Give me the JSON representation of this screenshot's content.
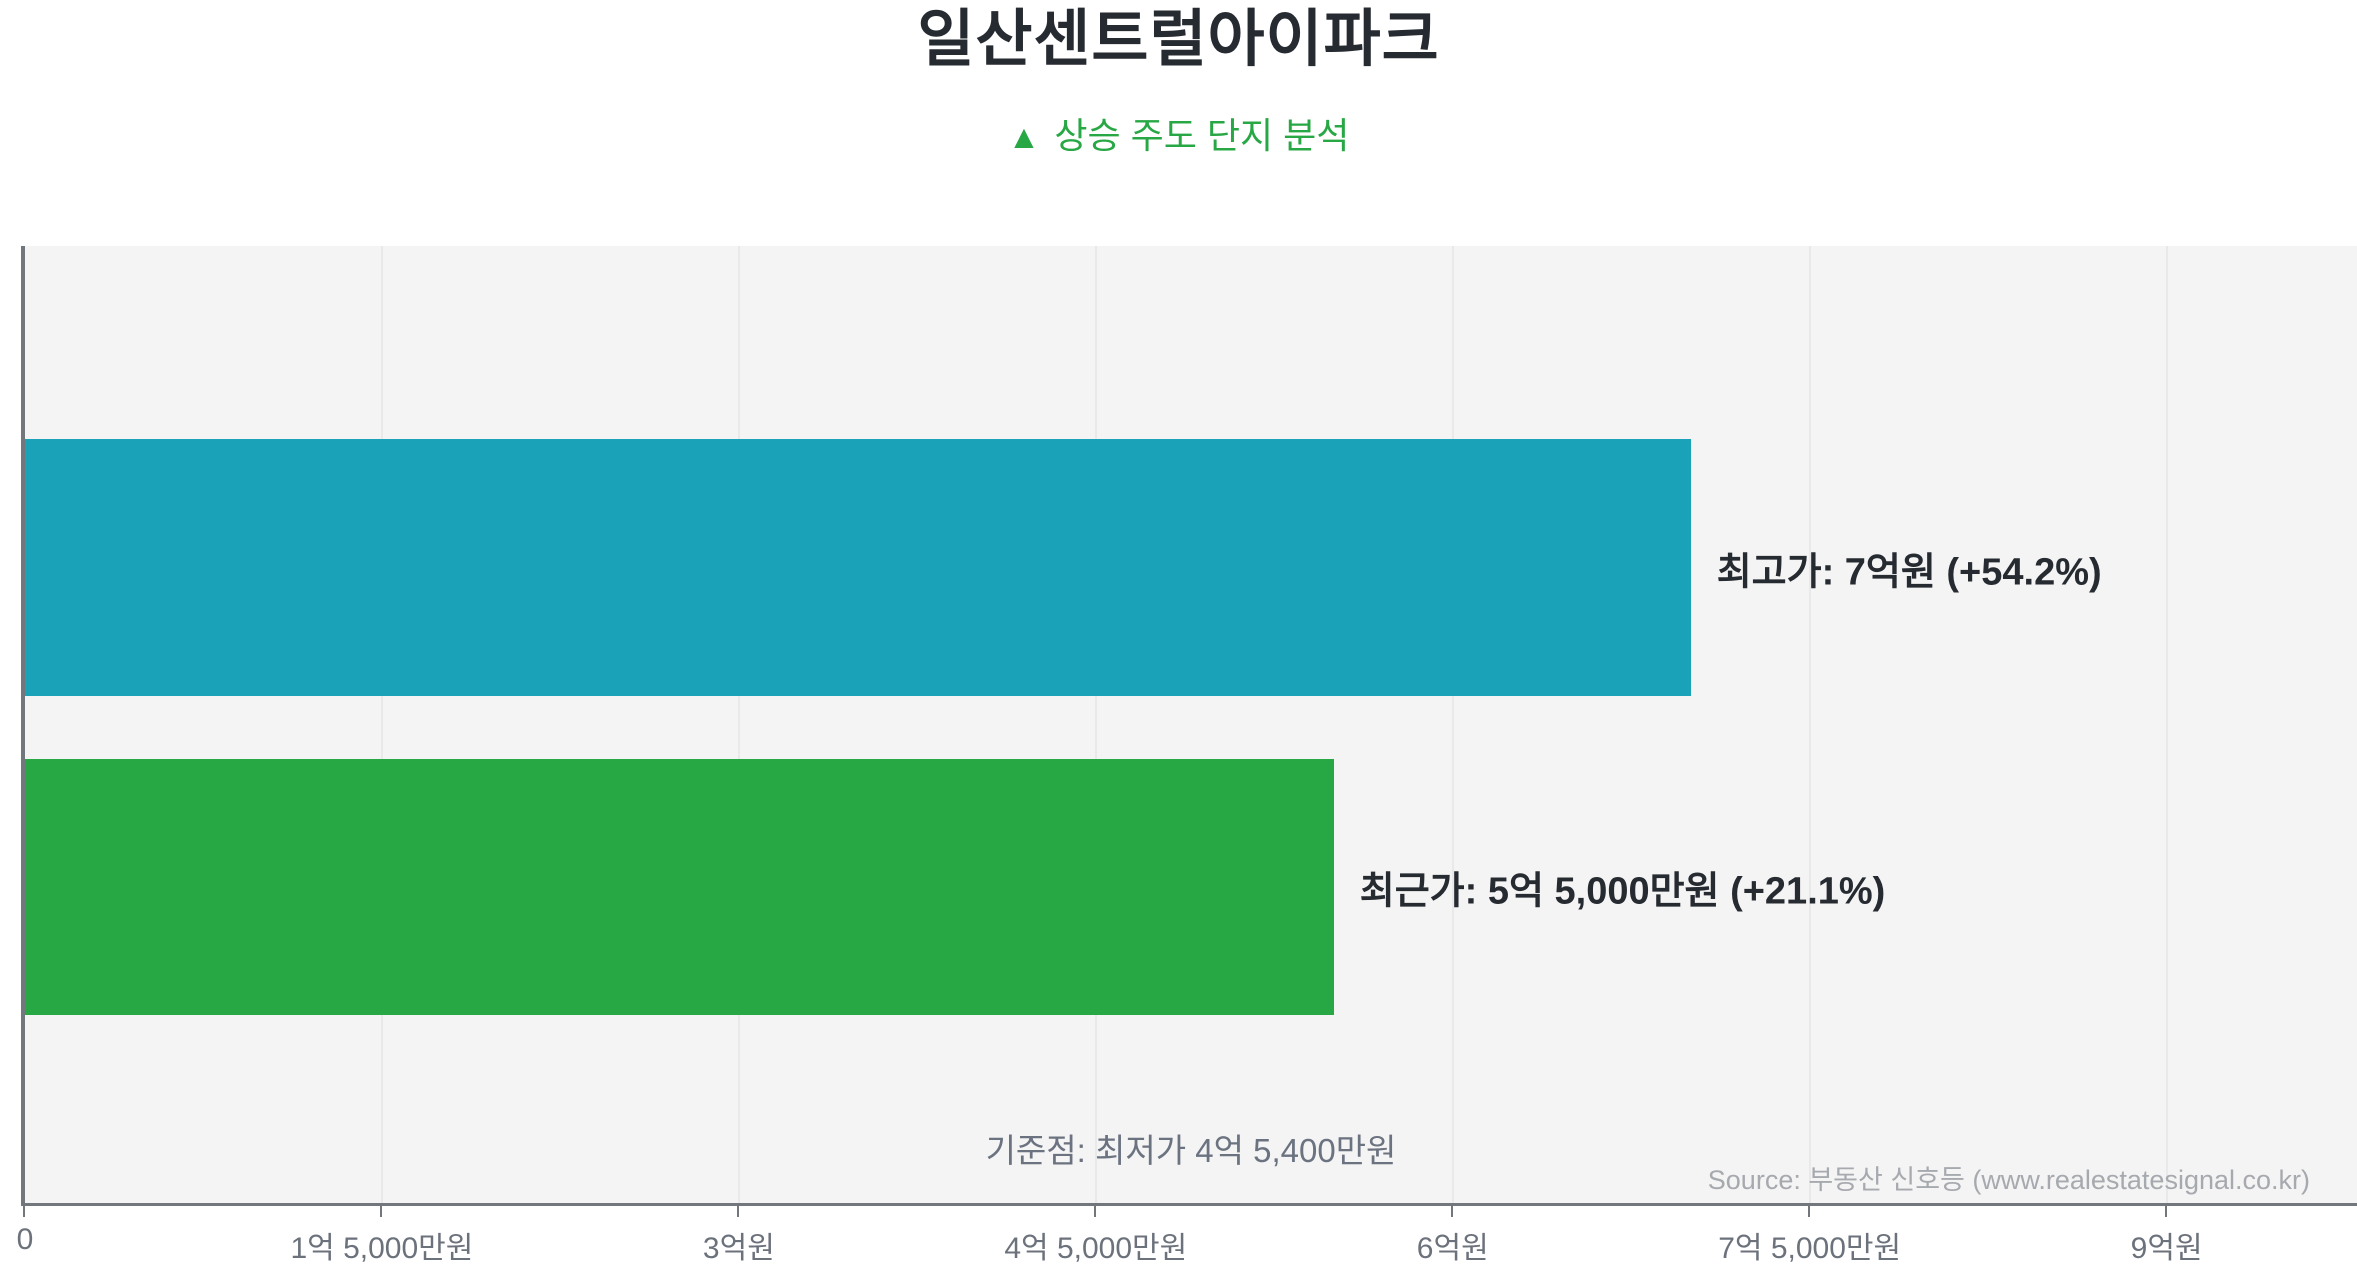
{
  "header": {
    "title": "일산센트럴아이파크",
    "subtitle": "상승 주도 단지 분석",
    "subtitle_icon": "▲"
  },
  "chart_data": {
    "type": "bar",
    "orientation": "horizontal",
    "title": "일산센트럴아이파크",
    "subtitle": "▲ 상승 주도 단지 분석",
    "unit": "KRW 억원 (100M won)",
    "xlim": [
      0,
      9.8
    ],
    "grid": "vertical gridlines on light-gray panel",
    "legend": "none",
    "series": [
      {
        "name": "최고가",
        "value": 7.0,
        "label": "최고가: 7억원 (+54.2%)",
        "change": "+54.2%",
        "color": "#1aa2b8"
      },
      {
        "name": "최근가",
        "value": 5.5,
        "label": "최근가: 5억 5,000만원 (+21.1%)",
        "change": "+21.1%",
        "color": "#28a745"
      }
    ],
    "baseline_note": "기준점: 최저가 4억 5,400만원",
    "baseline_value": 4.54,
    "x_ticks": [
      {
        "value": 0,
        "label": "0"
      },
      {
        "value": 1.5,
        "label": "1억 5,000만원"
      },
      {
        "value": 3,
        "label": "3억원"
      },
      {
        "value": 4.5,
        "label": "4억 5,000만원"
      },
      {
        "value": 6,
        "label": "6억원"
      },
      {
        "value": 7.5,
        "label": "7억 5,000만원"
      },
      {
        "value": 9,
        "label": "9억원"
      }
    ],
    "source": "Source: 부동산 신호등 (www.realestatesignal.co.kr)"
  },
  "colors": {
    "plot_bg": "#f4f4f4",
    "gridline": "#e9e9e9",
    "axis": "#72777d",
    "tick_label": "#6c727c",
    "text_dark": "#262a31",
    "note": "#6b7280",
    "source": "#a6a9ae",
    "accent_green": "#28a745",
    "bar_teal": "#1aa2b8",
    "bar_green": "#28a745"
  }
}
